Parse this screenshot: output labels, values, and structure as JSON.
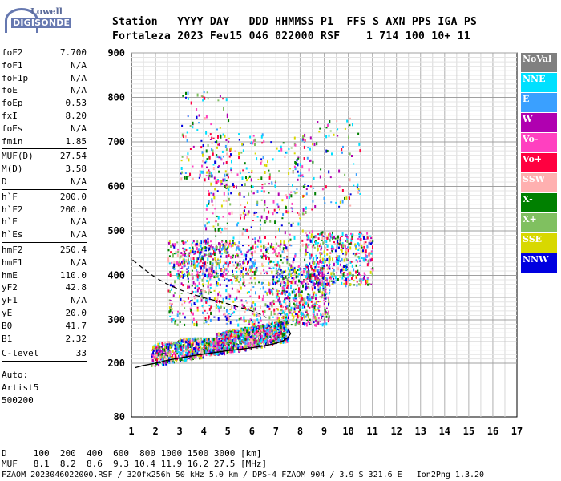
{
  "logo": {
    "top": "Lowell",
    "main": "DIGISONDE"
  },
  "header": {
    "line1": "Station   YYYY DAY   DDD HHMMSS P1  FFS S AXN PPS IGA PS",
    "line2": "Fortaleza 2023 Fev15 046 022000 RSF    1 714 100 10+ 11"
  },
  "params": {
    "group1": [
      {
        "k": "foF2",
        "v": "7.700"
      },
      {
        "k": "foF1",
        "v": "N/A"
      },
      {
        "k": "foF1p",
        "v": "N/A"
      },
      {
        "k": "foE",
        "v": "N/A"
      },
      {
        "k": "foEp",
        "v": "0.53"
      },
      {
        "k": "fxI",
        "v": "8.20"
      },
      {
        "k": "foEs",
        "v": "N/A"
      },
      {
        "k": "fmin",
        "v": "1.85"
      }
    ],
    "group2": [
      {
        "k": "MUF(D)",
        "v": "27.54"
      },
      {
        "k": "M(D)",
        "v": "3.58"
      },
      {
        "k": "D",
        "v": "N/A"
      }
    ],
    "group3": [
      {
        "k": "h`F",
        "v": "200.0"
      },
      {
        "k": "h`F2",
        "v": "200.0"
      },
      {
        "k": "h`E",
        "v": "N/A"
      },
      {
        "k": "h`Es",
        "v": "N/A"
      }
    ],
    "group4": [
      {
        "k": "hmF2",
        "v": "250.4"
      },
      {
        "k": "hmF1",
        "v": "N/A"
      },
      {
        "k": "hmE",
        "v": "110.0"
      },
      {
        "k": "yF2",
        "v": "42.8"
      },
      {
        "k": "yF1",
        "v": "N/A"
      },
      {
        "k": "yE",
        "v": "20.0"
      },
      {
        "k": "B0",
        "v": "41.7"
      },
      {
        "k": "B1",
        "v": "2.32"
      }
    ],
    "group5": [
      {
        "k": "C-level",
        "v": "33"
      }
    ],
    "auto": [
      "Auto:",
      "Artist5",
      "500200"
    ]
  },
  "legend": [
    {
      "label": "NoVal",
      "color": "#808080"
    },
    {
      "label": "NNE",
      "color": "#00e0ff"
    },
    {
      "label": "E",
      "color": "#3aa0ff"
    },
    {
      "label": "W",
      "color": "#b000b0"
    },
    {
      "label": "Vo-",
      "color": "#ff40c0"
    },
    {
      "label": "Vo+",
      "color": "#ff0040"
    },
    {
      "label": "SSW",
      "color": "#ffb0b0"
    },
    {
      "label": "X-",
      "color": "#008000"
    },
    {
      "label": "X+",
      "color": "#80c060"
    },
    {
      "label": "SSE",
      "color": "#d8d800"
    },
    {
      "label": "NNW",
      "color": "#0000e0"
    }
  ],
  "footer": {
    "line1": "D     100  200  400  600  800 1000 1500 3000 [km]",
    "line2": "MUF   8.1  8.2  8.6  9.3 10.4 11.9 16.2 27.5 [MHz]",
    "line3": "FZAOM_2023046022000.RSF / 320fx256h 50 kHz 5.0 km / DPS-4 FZAOM 904 / 3.9 S 321.6 E   Ion2Png 1.3.20"
  },
  "chart_data": {
    "type": "scatter",
    "x_ticks": [
      "1",
      "2",
      "3",
      "4",
      "5",
      "6",
      "7",
      "8",
      "9",
      "10",
      "11",
      "12",
      "13",
      "14",
      "15",
      "16",
      "17"
    ],
    "y_ticks": [
      "80",
      "200",
      "300",
      "400",
      "500",
      "600",
      "700",
      "800",
      "900"
    ],
    "xlim": [
      1,
      17
    ],
    "ylim": [
      80,
      900
    ],
    "grid": true,
    "trace_o_lower": {
      "x": [
        1.15,
        1.5,
        2,
        2.5,
        3,
        3.5,
        4,
        4.5,
        5,
        5.5,
        6,
        6.5,
        7,
        7.3,
        7.5,
        7.6,
        7.5
      ],
      "y": [
        190,
        195,
        200,
        207,
        212,
        217,
        221,
        225,
        229,
        232,
        236,
        240,
        246,
        252,
        260,
        268,
        280
      ]
    },
    "trace_o_dashed": {
      "x": [
        1.05,
        1.5,
        2,
        2.5,
        3,
        3.5,
        4,
        4.5,
        5,
        5.5,
        6,
        6.3,
        6.6
      ],
      "y": [
        435,
        415,
        395,
        380,
        368,
        358,
        350,
        343,
        336,
        328,
        320,
        314,
        305
      ]
    },
    "echo_clusters": [
      {
        "x": [
          1.8,
          4.5
        ],
        "y": [
          195,
          260
        ],
        "n": 700
      },
      {
        "x": [
          4.5,
          7.5
        ],
        "y": [
          215,
          300
        ],
        "n": 900
      },
      {
        "x": [
          7,
          9.2
        ],
        "y": [
          290,
          420
        ],
        "n": 500
      },
      {
        "x": [
          8.2,
          11
        ],
        "y": [
          380,
          500
        ],
        "n": 450
      },
      {
        "x": [
          2.5,
          7.5
        ],
        "y": [
          290,
          480
        ],
        "n": 700
      },
      {
        "x": [
          4,
          8.5
        ],
        "y": [
          400,
          720
        ],
        "n": 500
      },
      {
        "x": [
          2.8,
          5
        ],
        "y": [
          400,
          480
        ],
        "n": 180
      },
      {
        "x": [
          3,
          5
        ],
        "y": [
          600,
          820
        ],
        "n": 120
      },
      {
        "x": [
          8.5,
          10.5
        ],
        "y": [
          550,
          760
        ],
        "n": 70
      }
    ]
  }
}
